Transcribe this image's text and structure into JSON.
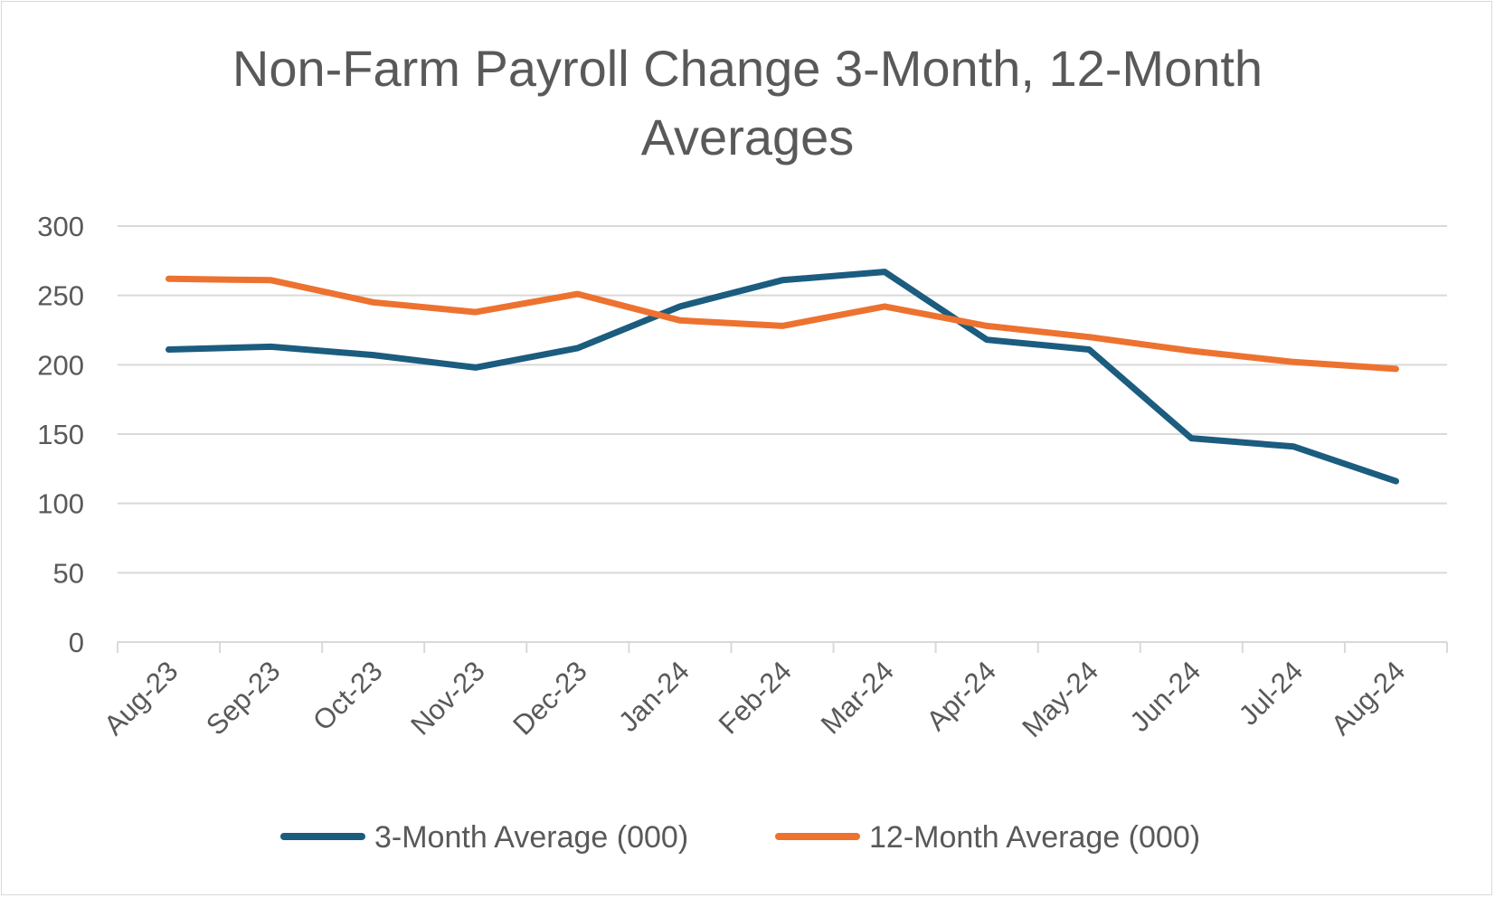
{
  "chart_data": {
    "type": "line",
    "title_lines": [
      "Non-Farm Payroll Change 3-Month, 12-Month",
      "Averages"
    ],
    "xlabel": "",
    "ylabel": "",
    "ylim": [
      0,
      300
    ],
    "yticks": [
      0,
      50,
      100,
      150,
      200,
      250,
      300
    ],
    "grid": true,
    "legend_position": "bottom",
    "categories": [
      "Aug-23",
      "Sep-23",
      "Oct-23",
      "Nov-23",
      "Dec-23",
      "Jan-24",
      "Feb-24",
      "Mar-24",
      "Apr-24",
      "May-24",
      "Jun-24",
      "Jul-24",
      "Aug-24"
    ],
    "series": [
      {
        "name": "3-Month Average (000)",
        "color": "#1b5c7f",
        "values": [
          211,
          213,
          207,
          198,
          212,
          242,
          261,
          267,
          218,
          211,
          147,
          141,
          116
        ]
      },
      {
        "name": "12-Month Average (000)",
        "color": "#ed7230",
        "values": [
          262,
          261,
          245,
          238,
          251,
          232,
          228,
          242,
          228,
          220,
          210,
          202,
          197
        ]
      }
    ]
  }
}
